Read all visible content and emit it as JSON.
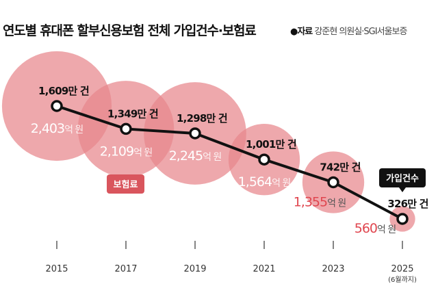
{
  "title": "연도별 휴대폰 할부신용보험 전체 가입건수·보험료",
  "source_label": "●자료",
  "source": "강준현 의원실·SGI서울보증",
  "chart_data": {
    "type": "line",
    "subtype": "line with proportional bubbles",
    "categories": [
      "2015",
      "2017",
      "2019",
      "2021",
      "2023",
      "2025"
    ],
    "category_notes": [
      "",
      "",
      "",
      "",
      "",
      "(6월까지)"
    ],
    "series": [
      {
        "name": "가입건수",
        "unit": "만 건",
        "values": [
          1609,
          1349,
          1298,
          1001,
          742,
          326
        ],
        "labels": [
          "1,609",
          "1,349",
          "1,298",
          "1,001",
          "742",
          "326"
        ],
        "color": "#111111"
      },
      {
        "name": "보험료",
        "unit": "억 원",
        "values": [
          2403,
          2109,
          2245,
          1564,
          1355,
          560
        ],
        "labels": [
          "2,403",
          "2,109",
          "2,245",
          "1,564",
          "1,355",
          "560"
        ],
        "color": "#e8868c"
      }
    ],
    "legend": {
      "보험료": "보험료",
      "가입건수": "가입건수"
    },
    "colors": {
      "bubble": "#e8868c",
      "tag_premium": "#d9555d",
      "tag_count": "#111111",
      "premium_text_outside": "#e0464f"
    },
    "grid": false
  }
}
